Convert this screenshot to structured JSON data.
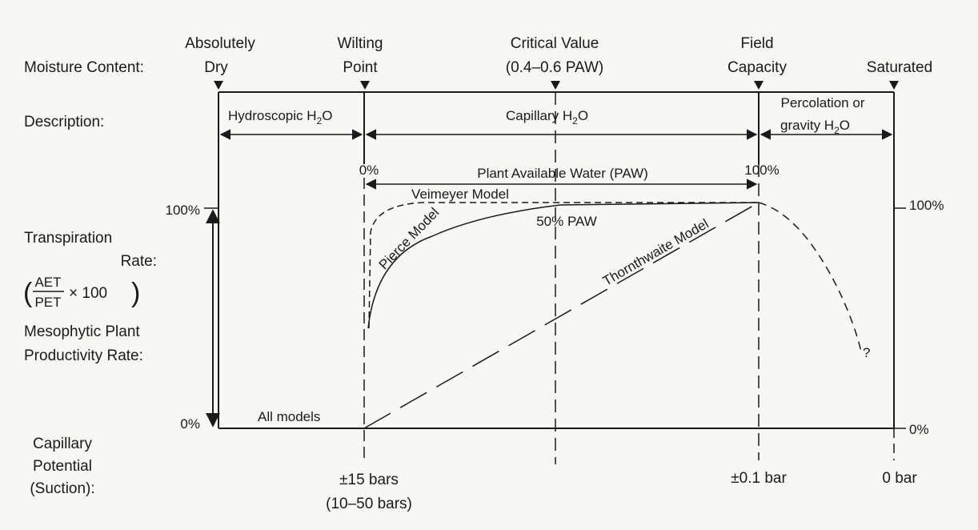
{
  "row_labels": {
    "moisture": "Moisture Content:",
    "description": "Description:",
    "transpiration_1": "Transpiration",
    "transpiration_2": "Rate:",
    "ratio_num": "AET",
    "ratio_den": "PET",
    "ratio_mult": "× 100",
    "mesophytic_1": "Mesophytic Plant",
    "mesophytic_2": "Productivity Rate:",
    "capillary_1": "Capillary",
    "capillary_2": "Potential",
    "capillary_3": "(Suction):"
  },
  "moisture_points": {
    "dry_1": "Absolutely",
    "dry_2": "Dry",
    "wilting_1": "Wilting",
    "wilting_2": "Point",
    "critical_1": "Critical Value",
    "critical_2": "(0.4–0.6 PAW)",
    "field_1": "Field",
    "field_2": "Capacity",
    "saturated": "Saturated"
  },
  "descriptions": {
    "hydroscopic": "Hydroscopic H",
    "hydroscopic_tail": "O",
    "capillary": "Capillary H",
    "capillary_tail": "O",
    "percolation_1": "Percolation or",
    "percolation_2": "gravity H",
    "percolation_tail": "O",
    "subscript": "2"
  },
  "paw": {
    "start": "0%",
    "end": "100%",
    "label": "Plant Available Water (PAW)",
    "half": "50% PAW"
  },
  "axis": {
    "left_top": "100%",
    "left_bottom": "0%",
    "right_top": "100%",
    "right_bottom": "0%"
  },
  "models": {
    "veimeyer": "Veimeyer Model",
    "pierce": "Pierce Model",
    "thornthwaite": "Thornthwaite Model",
    "all": "All models",
    "unknown": "?"
  },
  "suction": {
    "wilting_1": "±15 bars",
    "wilting_2": "(10–50 bars)",
    "field": "±0.1 bar",
    "saturated": "0 bar"
  }
}
